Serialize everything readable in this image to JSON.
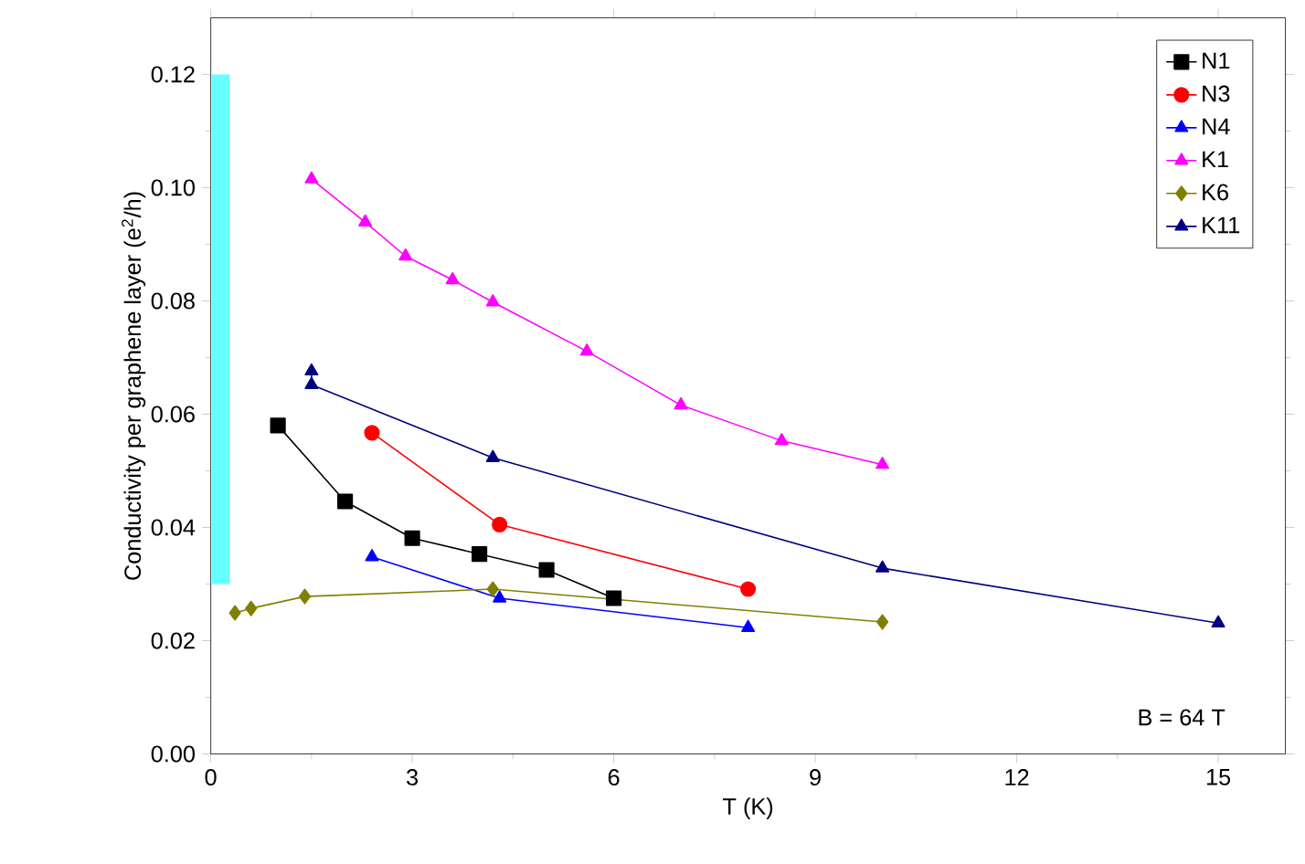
{
  "chart_data": {
    "type": "line",
    "xlabel": "T (K)",
    "ylabel": "Conductivity per graphene layer (e$^{2}$/h)",
    "xlim": [
      0,
      16
    ],
    "xticks": [
      0,
      3,
      6,
      9,
      12,
      15
    ],
    "ylim": [
      0,
      0.13
    ],
    "yticks": [
      {
        "value": 0,
        "label": "0.00"
      },
      {
        "value": 0.02,
        "label": "0.02"
      },
      {
        "value": 0.04,
        "label": "0.04"
      },
      {
        "value": 0.06,
        "label": "0.06"
      },
      {
        "value": 0.08,
        "label": "0.08"
      },
      {
        "value": 0.1,
        "label": "0.10"
      },
      {
        "value": 0.12,
        "label": "0.12"
      }
    ],
    "legend": "top right",
    "grid": false,
    "annotations": [
      "B = 64 T"
    ],
    "series": [
      {
        "name": "N1",
        "color": "#000000",
        "marker": "square",
        "x": [
          1,
          2,
          3,
          4,
          5,
          6
        ],
        "values": [
          0.058,
          0.0446,
          0.0381,
          0.0353,
          0.0325,
          0.0275
        ]
      },
      {
        "name": "N3",
        "color": "#ff0000",
        "marker": "circle",
        "x": [
          2.4,
          4.3,
          8.0
        ],
        "values": [
          0.0567,
          0.0405,
          0.0291
        ]
      },
      {
        "name": "N4",
        "color": "#0000ff",
        "marker": "triangle",
        "x": [
          2.4,
          4.3,
          8.0
        ],
        "values": [
          0.0348,
          0.0275,
          0.0223
        ]
      },
      {
        "name": "K1",
        "color": "#ff00ff",
        "marker": "triangle",
        "x": [
          1.5,
          2.3,
          2.9,
          3.6,
          4.2,
          5.6,
          7.0,
          8.5,
          10.0
        ],
        "values": [
          0.1015,
          0.0939,
          0.0879,
          0.0837,
          0.0798,
          0.0711,
          0.0616,
          0.0553,
          0.0511
        ]
      },
      {
        "name": "K6",
        "color": "#808000",
        "marker": "diamond",
        "x": [
          0.36,
          0.6,
          1.4,
          4.2,
          10.0
        ],
        "values": [
          0.0249,
          0.0257,
          0.0278,
          0.0291,
          0.0233
        ]
      },
      {
        "name": "K11",
        "color": "#000080",
        "marker": "triangle",
        "x": [
          1.5,
          1.5,
          4.2,
          10.0,
          15.0
        ],
        "values": [
          0.0676,
          0.0652,
          0.0523,
          0.0328,
          0.0231
        ]
      },
      {
        "type": "bar",
        "color": "#66ffff",
        "x": [
          0.15
        ],
        "base": [
          0.03
        ],
        "values": [
          0.09
        ]
      }
    ]
  }
}
